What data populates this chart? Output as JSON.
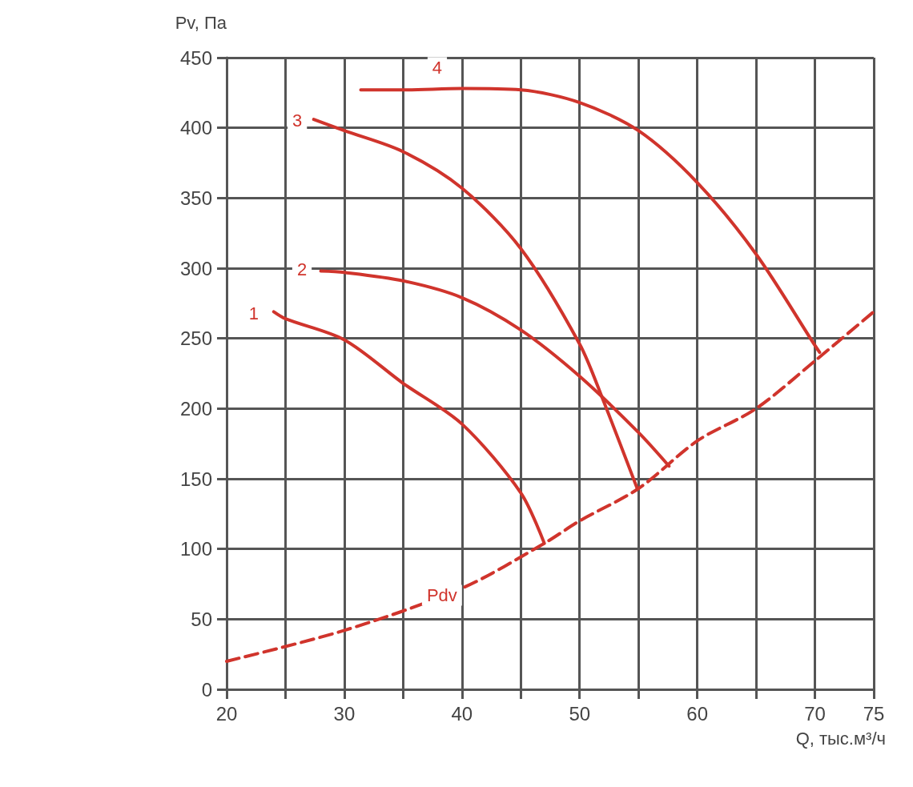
{
  "chart_data": {
    "type": "line",
    "xlabel": "Q, тыс.м³/ч",
    "ylabel": "Pv, Па",
    "xlim": [
      20,
      75
    ],
    "ylim": [
      0,
      450
    ],
    "xticks": [
      20,
      {
        "value": 25,
        "label": null
      },
      30,
      {
        "value": 35,
        "label": null
      },
      40,
      {
        "value": 45,
        "label": null
      },
      50,
      {
        "value": 55,
        "label": null
      },
      60,
      {
        "value": 65,
        "label": null
      },
      70,
      75
    ],
    "yticks": [
      0,
      50,
      100,
      150,
      200,
      250,
      300,
      350,
      400,
      450
    ],
    "grid": true,
    "marker": "none",
    "series": [
      {
        "color": "#d0342c",
        "line_style": "solid",
        "x": [
          24,
          25,
          30,
          35,
          40,
          45,
          47
        ],
        "values": [
          269,
          264,
          249,
          218,
          189,
          140,
          104
        ]
      },
      {
        "color": "#d0342c",
        "line_style": "solid",
        "x": [
          28,
          30,
          35,
          40,
          45,
          50,
          55,
          57.6
        ],
        "values": [
          298,
          297,
          291,
          279,
          256,
          223,
          183,
          159
        ]
      },
      {
        "color": "#d0342c",
        "line_style": "solid",
        "x": [
          27.4,
          30,
          35,
          40,
          45,
          50,
          52,
          54.9
        ],
        "values": [
          406,
          398,
          383,
          357,
          314,
          246,
          206,
          143
        ]
      },
      {
        "color": "#d0342c",
        "line_style": "solid",
        "x": [
          31.4,
          35,
          40,
          45,
          50,
          55,
          60,
          65,
          70,
          70.4
        ],
        "values": [
          427,
          427,
          428,
          427,
          418,
          398,
          361,
          310,
          245,
          240
        ]
      },
      {
        "color": "#d0342c",
        "line_style": "dashed",
        "x": [
          20,
          30,
          40,
          47,
          50,
          55,
          60,
          65,
          70,
          75
        ],
        "values": [
          20,
          42,
          72,
          104,
          120,
          143,
          177,
          200,
          234,
          269
        ]
      }
    ],
    "annotations": [
      {
        "text": "1",
        "x": 22.3,
        "y": 268
      },
      {
        "text": "2",
        "x": 26.4,
        "y": 299
      },
      {
        "text": "3",
        "x": 26,
        "y": 405
      },
      {
        "text": "4",
        "x": 37.9,
        "y": 443
      },
      {
        "text": "Pdv",
        "x": 38.3,
        "y": 67
      }
    ]
  }
}
